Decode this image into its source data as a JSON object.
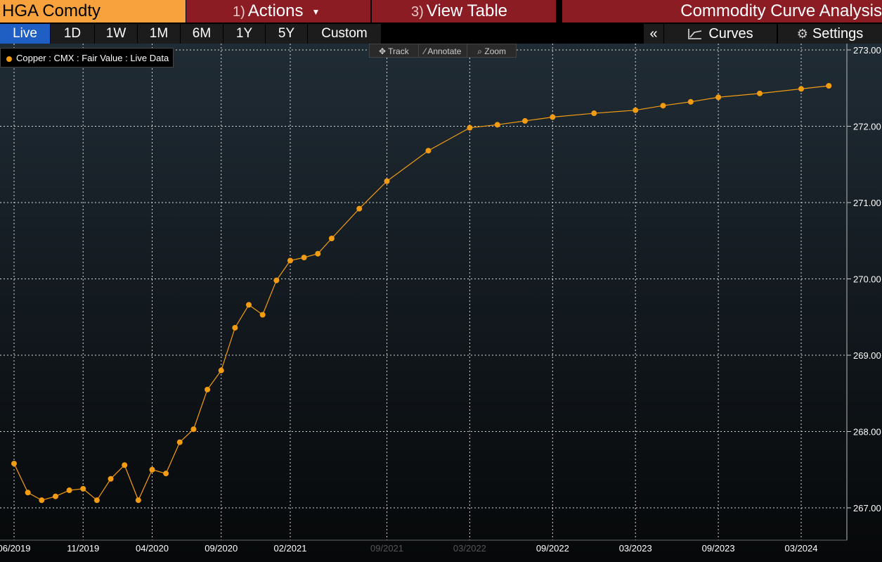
{
  "header": {
    "ticker": "HGA Comdty",
    "actions_num": "1)",
    "actions_label": "Actions",
    "viewtable_num": "3)",
    "viewtable_label": "View Table",
    "app_title": "Commodity Curve Analysis"
  },
  "ranges": [
    "Live",
    "1D",
    "1W",
    "1M",
    "6M",
    "1Y",
    "5Y",
    "Custom"
  ],
  "active_range": "Live",
  "toolbar": {
    "collapse": "«",
    "curves": "Curves",
    "settings": "Settings"
  },
  "tools": {
    "track": "Track",
    "annotate": "Annotate",
    "zoom": "Zoom"
  },
  "colors": {
    "series": "#f39c12",
    "accent_active": "#1f5fc4",
    "header_red": "#8b1c24",
    "ticker_orange": "#f7a23c"
  },
  "chart_data": {
    "type": "line",
    "legend": "Copper : CMX : Fair Value : Live Data",
    "legend_position": "top-left",
    "grid": true,
    "y_axis_side": "right",
    "ylim": [
      266.88,
      273.05
    ],
    "y_ticks": [
      "267.00",
      "268.00",
      "269.00",
      "270.00",
      "271.00",
      "272.00",
      "273.00"
    ],
    "x_ticks": [
      {
        "label": "06/2019",
        "date": "2019-06"
      },
      {
        "label": "11/2019",
        "date": "2019-11"
      },
      {
        "label": "04/2020",
        "date": "2020-04"
      },
      {
        "label": "09/2020",
        "date": "2020-09"
      },
      {
        "label": "02/2021",
        "date": "2021-02"
      },
      {
        "label": "09/2021",
        "date": "2021-09",
        "dim": true
      },
      {
        "label": "03/2022",
        "date": "2022-03",
        "dim": true
      },
      {
        "label": "09/2022",
        "date": "2022-09"
      },
      {
        "label": "03/2023",
        "date": "2023-03"
      },
      {
        "label": "09/2023",
        "date": "2023-09"
      },
      {
        "label": "03/2024",
        "date": "2024-03"
      }
    ],
    "series": [
      {
        "x": [
          "2019-06",
          "2019-07",
          "2019-08",
          "2019-09",
          "2019-10",
          "2019-11",
          "2019-12",
          "2020-01",
          "2020-02",
          "2020-03",
          "2020-04",
          "2020-05",
          "2020-06",
          "2020-07",
          "2020-08",
          "2020-09",
          "2020-10",
          "2020-11",
          "2020-12",
          "2021-01",
          "2021-02",
          "2021-03",
          "2021-04",
          "2021-05",
          "2021-07",
          "2021-09",
          "2021-12",
          "2022-03",
          "2022-05",
          "2022-07",
          "2022-09",
          "2022-12",
          "2023-03",
          "2023-05",
          "2023-07",
          "2023-09",
          "2023-12",
          "2024-03",
          "2024-05"
        ],
        "y": [
          267.58,
          267.2,
          267.1,
          267.15,
          267.23,
          267.25,
          267.1,
          267.38,
          267.56,
          267.1,
          267.5,
          267.45,
          267.86,
          268.03,
          268.55,
          268.8,
          269.36,
          269.66,
          269.53,
          269.98,
          270.24,
          270.28,
          270.33,
          270.53,
          270.92,
          271.28,
          271.68,
          271.98,
          272.02,
          272.07,
          272.12,
          272.17,
          272.21,
          272.27,
          272.32,
          272.38,
          272.43,
          272.49,
          272.53
        ]
      }
    ]
  }
}
